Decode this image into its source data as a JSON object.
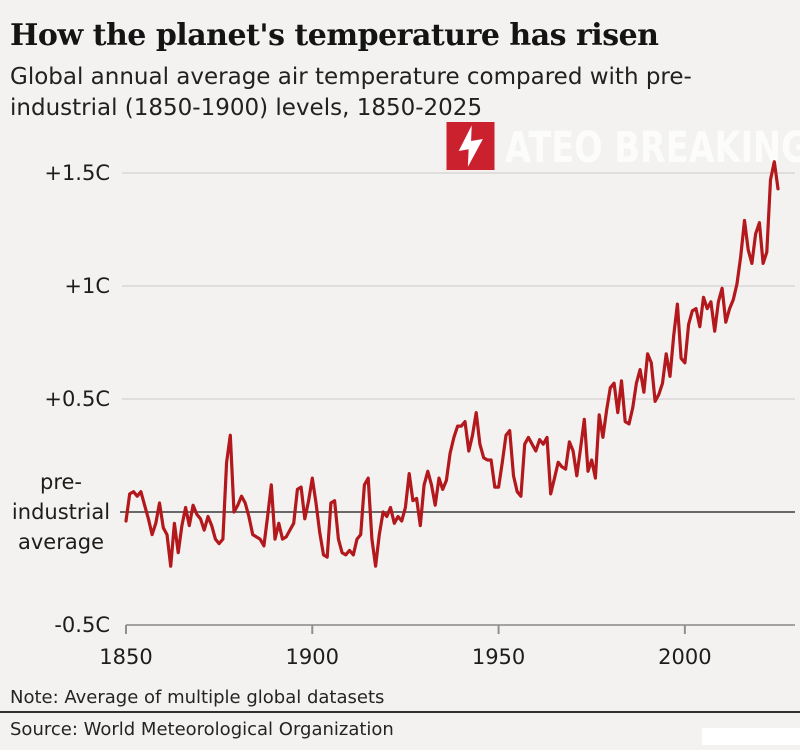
{
  "header": {
    "title": "How the planet's temperature has risen",
    "subtitle_line1": "Global annual average air temperature compared with pre-",
    "subtitle_line2": "industrial (1850-1900) levels, 1850-2025"
  },
  "watermark": {
    "label": "ATEO BREAKING",
    "icon": "lightning-bolt-icon",
    "badge_color": "#cb202d",
    "text_color": "#ffffff"
  },
  "footer": {
    "note": "Note: Average of multiple global datasets",
    "source": "Source: World Meteorological Organization"
  },
  "chart_data": {
    "type": "line",
    "title": "How the planet's temperature has risen",
    "subtitle": "Global annual average air temperature compared with pre-industrial (1850-1900) levels, 1850-2025",
    "unit": "C",
    "grid": true,
    "line_color": "#b2181c",
    "ylim": [
      -0.5,
      1.65
    ],
    "baseline_value": 0,
    "axis_line_value": -0.5,
    "x_start": 1850,
    "x_end": 2025,
    "x_ticks": [
      {
        "value": 1850,
        "label": "1850"
      },
      {
        "value": 1900,
        "label": "1900"
      },
      {
        "value": 1950,
        "label": "1950"
      },
      {
        "value": 2000,
        "label": "2000"
      }
    ],
    "y_ticks": [
      {
        "value": 1.5,
        "label": "+1.5C"
      },
      {
        "value": 1.0,
        "label": "+1C"
      },
      {
        "value": 0.5,
        "label": "+0.5C"
      },
      {
        "value": 0.0,
        "label_lines": [
          "pre-",
          "industrial",
          "average"
        ]
      },
      {
        "value": -0.5,
        "label": "-0.5C"
      }
    ],
    "series": [
      {
        "name": "Global annual average air temperature anomaly vs pre-industrial (1850-1900), C",
        "values": [
          -0.04,
          0.08,
          0.09,
          0.07,
          0.09,
          0.03,
          -0.03,
          -0.1,
          -0.05,
          0.04,
          -0.07,
          -0.1,
          -0.24,
          -0.05,
          -0.18,
          -0.06,
          0.02,
          -0.06,
          0.03,
          -0.01,
          -0.03,
          -0.08,
          -0.02,
          -0.06,
          -0.12,
          -0.14,
          -0.12,
          0.22,
          0.34,
          0.0,
          0.03,
          0.07,
          0.04,
          -0.02,
          -0.1,
          -0.11,
          -0.12,
          -0.15,
          -0.02,
          0.12,
          -0.12,
          -0.05,
          -0.12,
          -0.11,
          -0.08,
          -0.05,
          0.1,
          0.11,
          -0.03,
          0.05,
          0.15,
          0.04,
          -0.09,
          -0.19,
          -0.2,
          0.04,
          0.05,
          -0.12,
          -0.18,
          -0.19,
          -0.17,
          -0.19,
          -0.12,
          -0.1,
          0.12,
          0.15,
          -0.12,
          -0.24,
          -0.1,
          0.0,
          -0.02,
          0.02,
          -0.05,
          -0.02,
          -0.04,
          0.02,
          0.17,
          0.05,
          0.06,
          -0.06,
          0.12,
          0.18,
          0.12,
          0.03,
          0.15,
          0.1,
          0.14,
          0.26,
          0.33,
          0.38,
          0.38,
          0.4,
          0.27,
          0.34,
          0.44,
          0.3,
          0.24,
          0.23,
          0.23,
          0.11,
          0.11,
          0.22,
          0.34,
          0.36,
          0.16,
          0.09,
          0.07,
          0.3,
          0.33,
          0.3,
          0.27,
          0.32,
          0.3,
          0.33,
          0.08,
          0.15,
          0.22,
          0.2,
          0.19,
          0.31,
          0.27,
          0.16,
          0.28,
          0.41,
          0.18,
          0.23,
          0.15,
          0.43,
          0.33,
          0.45,
          0.55,
          0.57,
          0.44,
          0.58,
          0.4,
          0.39,
          0.46,
          0.57,
          0.63,
          0.53,
          0.7,
          0.66,
          0.49,
          0.52,
          0.57,
          0.7,
          0.6,
          0.78,
          0.92,
          0.68,
          0.66,
          0.83,
          0.89,
          0.9,
          0.82,
          0.95,
          0.9,
          0.93,
          0.8,
          0.93,
          0.99,
          0.84,
          0.9,
          0.94,
          1.01,
          1.13,
          1.29,
          1.16,
          1.1,
          1.23,
          1.28,
          1.1,
          1.15,
          1.47,
          1.55,
          1.43
        ]
      }
    ]
  }
}
